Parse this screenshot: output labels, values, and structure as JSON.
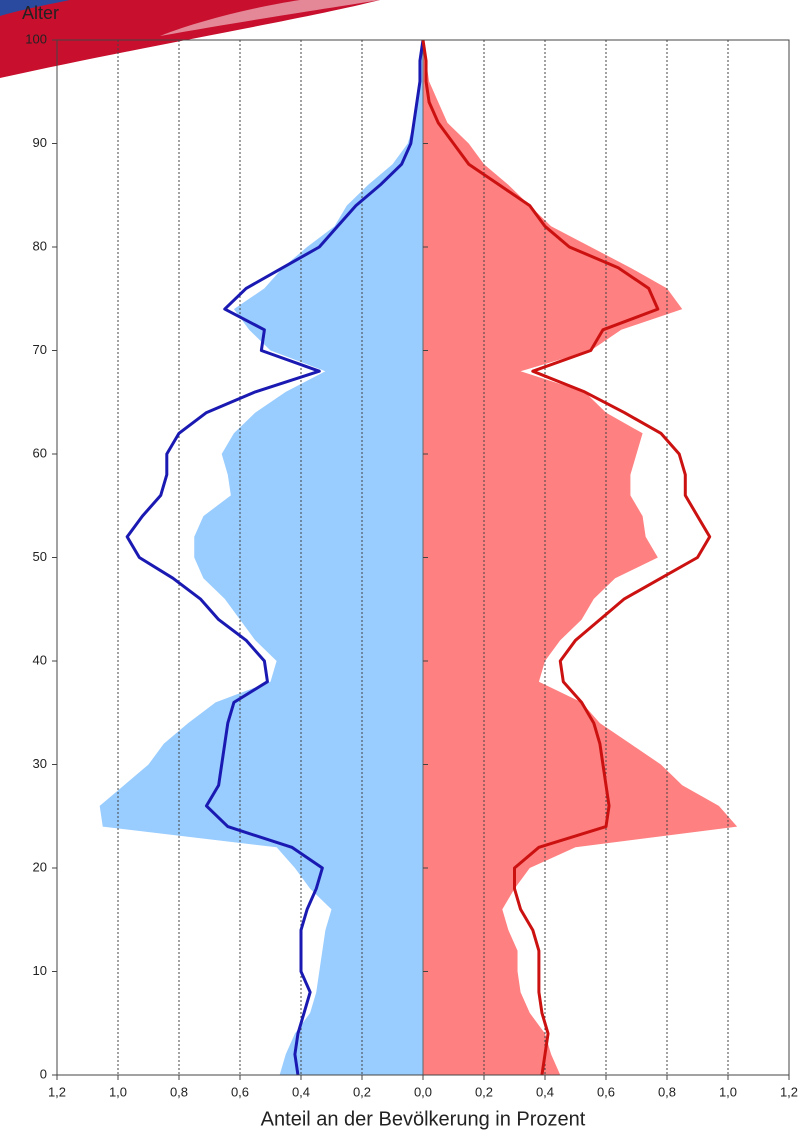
{
  "chart_data": {
    "type": "pyramid",
    "ylabel": "Alter",
    "xlabel": "Anteil an der Bevölkerung in Prozent",
    "x": [
      0,
      2,
      4,
      6,
      8,
      10,
      12,
      14,
      16,
      18,
      20,
      22,
      24,
      26,
      28,
      30,
      32,
      34,
      36,
      38,
      40,
      42,
      44,
      46,
      48,
      50,
      52,
      54,
      56,
      58,
      60,
      62,
      64,
      66,
      68,
      70,
      72,
      74,
      76,
      78,
      80,
      82,
      84,
      86,
      88,
      90,
      92,
      94,
      96,
      98,
      100
    ],
    "series": [
      {
        "side": "left",
        "kind": "area",
        "color": "#99ccff",
        "values": [
          0.47,
          0.45,
          0.42,
          0.37,
          0.35,
          0.34,
          0.33,
          0.32,
          0.3,
          0.37,
          0.42,
          0.48,
          1.05,
          1.06,
          0.98,
          0.9,
          0.85,
          0.77,
          0.68,
          0.5,
          0.48,
          0.55,
          0.6,
          0.65,
          0.72,
          0.75,
          0.75,
          0.72,
          0.63,
          0.64,
          0.66,
          0.62,
          0.55,
          0.45,
          0.32,
          0.5,
          0.57,
          0.62,
          0.52,
          0.46,
          0.38,
          0.29,
          0.25,
          0.18,
          0.1,
          0.05,
          0.03,
          0.02,
          0.01,
          0.01,
          0.0
        ]
      },
      {
        "side": "right",
        "kind": "area",
        "color": "#ff8080",
        "values": [
          0.45,
          0.42,
          0.4,
          0.35,
          0.32,
          0.31,
          0.31,
          0.28,
          0.26,
          0.3,
          0.35,
          0.5,
          1.03,
          0.97,
          0.85,
          0.78,
          0.68,
          0.58,
          0.52,
          0.38,
          0.4,
          0.45,
          0.52,
          0.56,
          0.63,
          0.77,
          0.73,
          0.72,
          0.68,
          0.68,
          0.7,
          0.72,
          0.6,
          0.53,
          0.32,
          0.55,
          0.65,
          0.85,
          0.8,
          0.68,
          0.55,
          0.42,
          0.35,
          0.28,
          0.2,
          0.15,
          0.08,
          0.05,
          0.02,
          0.01,
          0.0
        ]
      },
      {
        "side": "left",
        "kind": "line",
        "color": "#1a1ab3",
        "values": [
          0.41,
          0.42,
          0.41,
          0.39,
          0.37,
          0.4,
          0.4,
          0.4,
          0.38,
          0.35,
          0.33,
          0.43,
          0.64,
          0.71,
          0.67,
          0.66,
          0.65,
          0.64,
          0.62,
          0.51,
          0.52,
          0.58,
          0.67,
          0.73,
          0.82,
          0.93,
          0.97,
          0.92,
          0.86,
          0.84,
          0.84,
          0.8,
          0.71,
          0.55,
          0.34,
          0.53,
          0.52,
          0.65,
          0.58,
          0.46,
          0.34,
          0.28,
          0.22,
          0.14,
          0.07,
          0.04,
          0.03,
          0.02,
          0.01,
          0.01,
          0.0
        ]
      },
      {
        "side": "right",
        "kind": "line",
        "color": "#cc1111",
        "values": [
          0.39,
          0.4,
          0.41,
          0.39,
          0.38,
          0.38,
          0.38,
          0.36,
          0.32,
          0.3,
          0.3,
          0.38,
          0.6,
          0.61,
          0.6,
          0.59,
          0.58,
          0.56,
          0.52,
          0.46,
          0.45,
          0.5,
          0.58,
          0.66,
          0.78,
          0.9,
          0.94,
          0.9,
          0.86,
          0.86,
          0.84,
          0.78,
          0.66,
          0.53,
          0.36,
          0.55,
          0.59,
          0.77,
          0.74,
          0.64,
          0.48,
          0.4,
          0.35,
          0.25,
          0.15,
          0.1,
          0.05,
          0.02,
          0.01,
          0.01,
          0.0
        ]
      }
    ],
    "xlim": [
      -1.2,
      1.2
    ],
    "xticks": [
      {
        "value": -1.2,
        "label": "1,2"
      },
      {
        "value": -1.0,
        "label": "1,0"
      },
      {
        "value": -0.8,
        "label": "0,8"
      },
      {
        "value": -0.6,
        "label": "0,6"
      },
      {
        "value": -0.4,
        "label": "0,4"
      },
      {
        "value": -0.2,
        "label": "0,2"
      },
      {
        "value": 0,
        "label": "0,0"
      },
      {
        "value": 0.2,
        "label": "0,2"
      },
      {
        "value": 0.4,
        "label": "0,4"
      },
      {
        "value": 0.6,
        "label": "0,6"
      },
      {
        "value": 0.8,
        "label": "0,8"
      },
      {
        "value": 1.0,
        "label": "1,0"
      },
      {
        "value": 1.2,
        "label": "1,2"
      }
    ],
    "ylim": [
      0,
      100
    ],
    "yticks": [
      0,
      10,
      20,
      30,
      40,
      50,
      60,
      70,
      80,
      90,
      100
    ],
    "grid": true
  }
}
